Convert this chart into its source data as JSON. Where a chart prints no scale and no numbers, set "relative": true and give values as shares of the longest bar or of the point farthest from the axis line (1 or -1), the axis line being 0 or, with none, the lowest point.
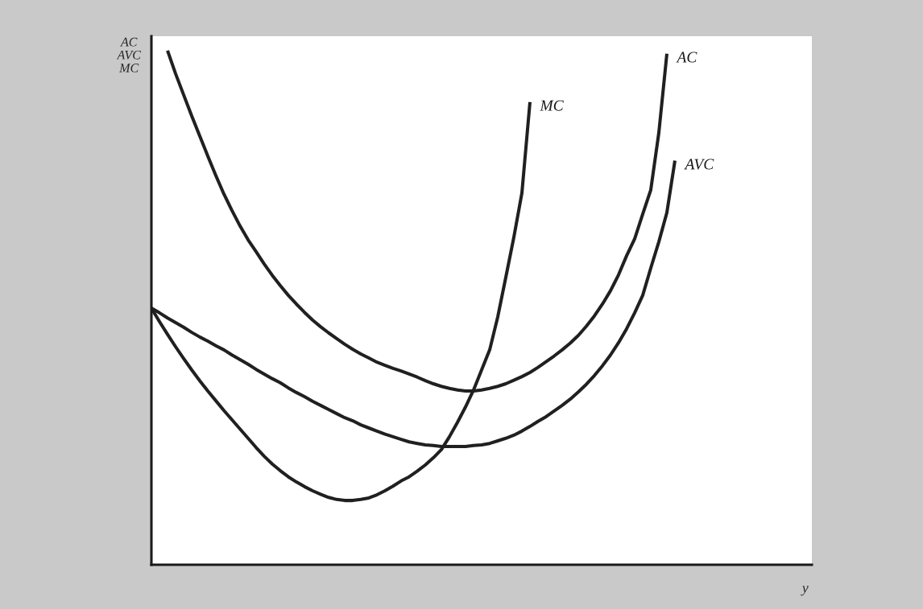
{
  "chart_data": {
    "type": "line",
    "relative": true,
    "xlabel": "y",
    "ylabel": "AC\nAVC\nMC",
    "line_style": "solid",
    "categories": [
      null,
      null,
      null,
      null,
      null,
      null,
      null,
      null,
      null,
      null,
      null,
      null,
      null,
      null,
      null,
      null,
      null,
      null,
      null,
      null,
      null,
      null,
      null,
      null,
      null,
      null,
      null,
      null,
      null,
      null,
      null,
      null,
      null,
      null,
      null,
      null,
      null,
      null,
      null,
      null,
      null,
      null,
      null,
      null,
      null,
      null,
      null,
      null,
      null,
      null,
      null,
      null,
      null,
      null,
      null,
      null,
      null,
      null,
      null,
      null,
      null,
      null,
      null,
      null,
      null,
      null,
      null,
      null,
      null,
      null,
      null,
      null,
      null,
      null,
      null,
      null,
      null,
      null,
      null,
      null,
      null,
      null,
      null
    ],
    "series": [
      {
        "name": "AC",
        "color": "#202020",
        "values": [
          null,
          null,
          1.0,
          0.955,
          0.914,
          0.873,
          0.834,
          0.795,
          0.757,
          0.721,
          0.689,
          0.659,
          0.632,
          0.609,
          0.585,
          0.563,
          0.543,
          0.524,
          0.507,
          0.491,
          0.476,
          0.463,
          0.451,
          0.44,
          0.429,
          0.419,
          0.41,
          0.402,
          0.394,
          0.388,
          0.382,
          0.377,
          0.371,
          0.365,
          0.358,
          0.352,
          0.347,
          0.343,
          0.34,
          0.338,
          0.338,
          0.34,
          0.343,
          0.347,
          0.352,
          0.359,
          0.366,
          0.374,
          0.384,
          0.395,
          0.406,
          0.418,
          0.431,
          0.446,
          0.464,
          0.484,
          0.507,
          0.533,
          0.564,
          0.601,
          0.634,
          0.682,
          0.729,
          0.84,
          0.994,
          null,
          null,
          null,
          null,
          null,
          null,
          null,
          null,
          null,
          null,
          null,
          null,
          null,
          null,
          null,
          null,
          null,
          null
        ]
      },
      {
        "name": "MC",
        "color": "#202020",
        "values": [
          0.499,
          0.473,
          0.448,
          0.424,
          0.401,
          0.379,
          0.358,
          0.338,
          0.319,
          0.3,
          0.282,
          0.264,
          0.246,
          0.228,
          0.211,
          0.196,
          0.183,
          0.171,
          0.161,
          0.152,
          0.144,
          0.137,
          0.131,
          0.127,
          0.125,
          0.125,
          0.127,
          0.13,
          0.136,
          0.144,
          0.153,
          0.163,
          0.171,
          0.182,
          0.194,
          0.208,
          0.224,
          0.249,
          0.277,
          0.307,
          0.34,
          0.379,
          0.418,
          0.482,
          0.559,
          0.637,
          0.723,
          0.9,
          null,
          null,
          null,
          null,
          null,
          null,
          null,
          null,
          null,
          null,
          null,
          null,
          null,
          null,
          null,
          null,
          null,
          null,
          null,
          null,
          null,
          null,
          null,
          null,
          null,
          null,
          null,
          null,
          null,
          null,
          null,
          null,
          null,
          null,
          null
        ]
      },
      {
        "name": "AVC",
        "color": "#202020",
        "values": [
          0.499,
          0.49,
          0.48,
          0.471,
          0.462,
          0.452,
          0.443,
          0.435,
          0.426,
          0.418,
          0.408,
          0.399,
          0.39,
          0.38,
          0.371,
          0.362,
          0.354,
          0.344,
          0.335,
          0.327,
          0.318,
          0.31,
          0.302,
          0.294,
          0.286,
          0.28,
          0.272,
          0.266,
          0.26,
          0.254,
          0.249,
          0.244,
          0.239,
          0.236,
          0.233,
          0.232,
          0.23,
          0.23,
          0.23,
          0.23,
          0.232,
          0.233,
          0.236,
          0.241,
          0.246,
          0.252,
          0.26,
          0.269,
          0.279,
          0.288,
          0.299,
          0.31,
          0.322,
          0.336,
          0.351,
          0.368,
          0.387,
          0.408,
          0.432,
          0.459,
          0.49,
          0.524,
          0.577,
          0.628,
          0.685,
          0.786,
          null,
          null,
          null,
          null,
          null,
          null,
          null,
          null,
          null,
          null,
          null,
          null,
          null,
          null,
          null,
          null,
          null
        ]
      }
    ]
  }
}
